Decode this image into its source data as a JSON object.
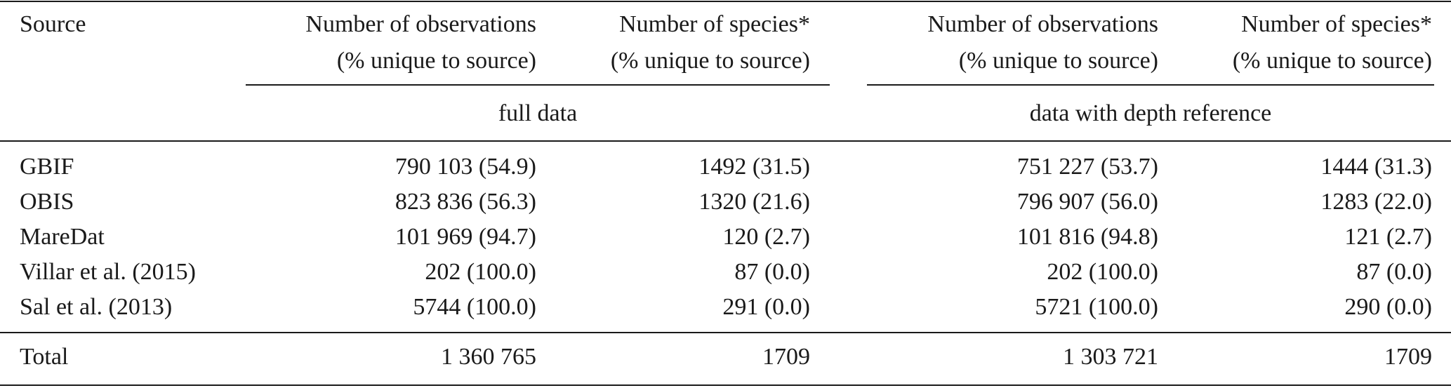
{
  "headers": {
    "source": "Source",
    "obs_line1": "Number of observations",
    "obs_line2": "(% unique to source)",
    "sp_line1": "Number of species*",
    "sp_line2": "(% unique to source)",
    "group_full": "full data",
    "group_depth": "data with depth reference"
  },
  "rows": [
    {
      "source": "GBIF",
      "obs_full": "790 103 (54.9)",
      "sp_full": "1492 (31.5)",
      "obs_depth": "751 227 (53.7)",
      "sp_depth": "1444 (31.3)"
    },
    {
      "source": "OBIS",
      "obs_full": "823 836 (56.3)",
      "sp_full": "1320 (21.6)",
      "obs_depth": "796 907 (56.0)",
      "sp_depth": "1283 (22.0)"
    },
    {
      "source": "MareDat",
      "obs_full": "101 969 (94.7)",
      "sp_full": "120 (2.7)",
      "obs_depth": "101 816 (94.8)",
      "sp_depth": "121 (2.7)"
    },
    {
      "source": "Villar et al. (2015)",
      "obs_full": "202 (100.0)",
      "sp_full": "87 (0.0)",
      "obs_depth": "202 (100.0)",
      "sp_depth": "87 (0.0)"
    },
    {
      "source": "Sal et al. (2013)",
      "obs_full": "5744 (100.0)",
      "sp_full": "291 (0.0)",
      "obs_depth": "5721 (100.0)",
      "sp_depth": "290 (0.0)"
    }
  ],
  "total": {
    "source": "Total",
    "obs_full": "1 360 765",
    "sp_full": "1709",
    "obs_depth": "1 303 721",
    "sp_depth": "1709"
  }
}
